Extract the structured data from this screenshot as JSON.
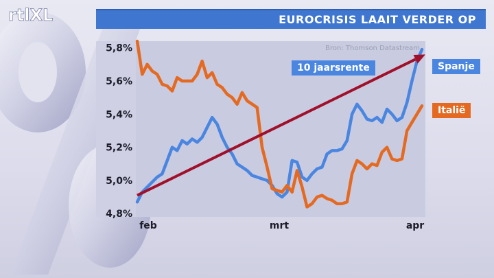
{
  "header": {
    "logo_text": "rtlXL",
    "title": "EUROCRISIS LAAIT VERDER OP"
  },
  "source": "Bron: Thomson Datastream",
  "colors": {
    "title_bar": "#3f76cf",
    "spanje": "#4a86e0",
    "italie": "#e46a22",
    "arrow": "#a0102a",
    "plot_bg": "#cfd0e4"
  },
  "chart_data": {
    "type": "line",
    "title": "EUROCRISIS LAAIT VERDER OP",
    "subtitle": "10 jaarsrente",
    "xlabel": "",
    "ylabel": "",
    "x_ticks": [
      "feb",
      "mrt",
      "apr"
    ],
    "y_ticks": [
      "5,8%",
      "5,6%",
      "5,4%",
      "5,2%",
      "5,0%",
      "4,8%"
    ],
    "ylim": [
      4.78,
      5.84
    ],
    "grid": false,
    "series": [
      {
        "name": "Spanje",
        "values": [
          4.87,
          4.93,
          4.96,
          4.99,
          5.02,
          5.04,
          5.12,
          5.2,
          5.18,
          5.24,
          5.22,
          5.25,
          5.23,
          5.26,
          5.32,
          5.38,
          5.34,
          5.26,
          5.2,
          5.16,
          5.1,
          5.08,
          5.06,
          5.03,
          5.02,
          5.01,
          5.0,
          4.97,
          4.92,
          4.9,
          4.93,
          5.12,
          5.11,
          5.02,
          5.0,
          5.04,
          5.07,
          5.08,
          5.16,
          5.18,
          5.18,
          5.19,
          5.24,
          5.4,
          5.46,
          5.42,
          5.37,
          5.36,
          5.38,
          5.35,
          5.43,
          5.4,
          5.36,
          5.38,
          5.47,
          5.6,
          5.72,
          5.79
        ]
      },
      {
        "name": "Italië",
        "values": [
          5.84,
          5.64,
          5.7,
          5.66,
          5.64,
          5.58,
          5.57,
          5.54,
          5.62,
          5.6,
          5.6,
          5.6,
          5.64,
          5.72,
          5.62,
          5.65,
          5.58,
          5.56,
          5.52,
          5.5,
          5.46,
          5.53,
          5.48,
          5.46,
          5.44,
          5.2,
          5.08,
          4.95,
          4.94,
          4.93,
          4.97,
          4.93,
          5.06,
          4.96,
          4.84,
          4.86,
          4.9,
          4.91,
          4.89,
          4.88,
          4.86,
          4.86,
          4.87,
          5.04,
          5.12,
          5.1,
          5.07,
          5.1,
          5.09,
          5.17,
          5.2,
          5.13,
          5.12,
          5.13,
          5.3,
          5.35,
          5.4,
          5.45
        ]
      }
    ],
    "trend_arrow": {
      "from": 4.91,
      "to": 5.76
    }
  }
}
